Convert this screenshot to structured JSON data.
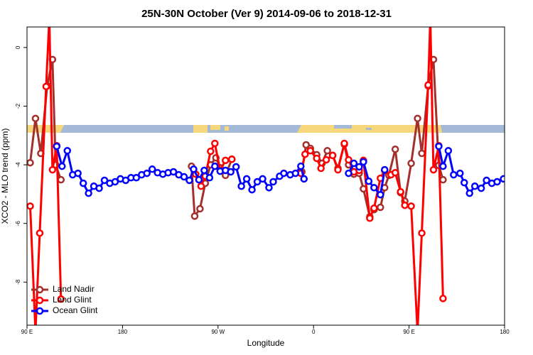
{
  "chart_data": {
    "type": "line",
    "title": "25N-30N October (Ver 9)   2014-09-06 to 2018-12-31",
    "x_label": "Longitude",
    "y_label": "XCO2 - MLO trend (ppm)",
    "xlim": [
      90,
      540
    ],
    "ylim": [
      -9.47,
      0.7
    ],
    "xticks": [
      {
        "value": 90,
        "label": "90 E"
      },
      180,
      {
        "value": 270,
        "label": "90 W"
      },
      {
        "value": 360,
        "label": "0"
      },
      {
        "value": 450,
        "label": "90 E"
      },
      {
        "value": 540,
        "label": "180"
      }
    ],
    "yticks": [
      -8,
      -6,
      -4,
      -2,
      0
    ],
    "grid": false,
    "legend": "bottomleft",
    "series": [
      {
        "name": "Land Nadir",
        "color": "#a3302c",
        "x": [
          93,
          98,
          103,
          109,
          114,
          117,
          122,
          null,
          245,
          248,
          253,
          258,
          263,
          268,
          272,
          277,
          283,
          null,
          349,
          353,
          357,
          363,
          368,
          373,
          378,
          383,
          389,
          393,
          398,
          403,
          407,
          413,
          417,
          423,
          427,
          431,
          437,
          442,
          446,
          452,
          458,
          462,
          468,
          473,
          478,
          482
        ],
        "values": [
          -3.93,
          -2.42,
          -3.61,
          -1.31,
          -0.41,
          -4.0,
          -4.51,
          null,
          -4.05,
          -5.75,
          -5.5,
          -4.63,
          -4.0,
          -3.76,
          -4.1,
          -4.36,
          -3.81,
          null,
          -4.24,
          -3.32,
          -3.44,
          -3.66,
          -3.95,
          -3.52,
          -3.68,
          -4.12,
          -3.3,
          -4.0,
          -4.32,
          -4.29,
          -4.82,
          -5.77,
          -5.53,
          -5.45,
          -4.78,
          -4.36,
          -3.47,
          -4.95,
          -5.24,
          -3.95,
          -2.42,
          -3.61,
          -1.31,
          -0.41,
          -4.02,
          -4.51
        ]
      },
      {
        "name": "Land Glint",
        "color": "#ff0000",
        "x": [
          93,
          98,
          102,
          108,
          111,
          114,
          118,
          122,
          null,
          249,
          254,
          258,
          263,
          267,
          272,
          277,
          283,
          null,
          348,
          352,
          357,
          363,
          367,
          372,
          378,
          383,
          389,
          393,
          398,
          403,
          407,
          413,
          417,
          423,
          427,
          433,
          437,
          442,
          446,
          452,
          458,
          462,
          468,
          470,
          473,
          478,
          482
        ],
        "values": [
          -5.41,
          -9.7,
          -6.33,
          -1.33,
          1.0,
          -4.17,
          -3.35,
          -8.58,
          null,
          -4.32,
          -4.73,
          -4.39,
          -3.54,
          -3.27,
          -4.19,
          -3.85,
          -3.81,
          null,
          -4.29,
          -3.64,
          -3.52,
          -3.78,
          -4.12,
          -3.83,
          -3.68,
          -4.17,
          -3.27,
          -3.83,
          -4.24,
          -4.19,
          -3.85,
          -5.82,
          -5.48,
          -4.46,
          -4.19,
          -4.34,
          -4.27,
          -4.92,
          -5.38,
          -5.41,
          -9.7,
          -6.33,
          -1.28,
          1.0,
          -4.17,
          -3.35,
          -8.56
        ]
      },
      {
        "name": "Ocean Glint",
        "color": "#0000ff",
        "x": [
          118,
          123,
          128,
          133,
          138,
          143,
          148,
          153,
          158,
          163,
          168,
          173,
          178,
          183,
          188,
          193,
          198,
          203,
          208,
          213,
          218,
          223,
          228,
          233,
          238,
          243,
          247,
          252,
          257,
          262,
          267,
          272,
          277,
          282,
          287,
          292,
          297,
          302,
          307,
          312,
          318,
          322,
          328,
          332,
          338,
          343,
          348,
          351,
          null,
          393,
          398,
          403,
          407,
          412,
          417,
          423,
          427,
          null,
          478,
          482,
          487,
          492,
          498,
          502,
          507,
          512,
          518,
          523,
          528,
          533,
          539
        ],
        "values": [
          -3.37,
          -4.05,
          -3.52,
          -4.34,
          -4.29,
          -4.63,
          -4.97,
          -4.73,
          -4.8,
          -4.53,
          -4.63,
          -4.58,
          -4.48,
          -4.53,
          -4.44,
          -4.44,
          -4.34,
          -4.29,
          -4.15,
          -4.27,
          -4.32,
          -4.27,
          -4.24,
          -4.34,
          -4.41,
          -4.53,
          -4.15,
          -4.51,
          -4.19,
          -4.44,
          -4.05,
          -4.22,
          -4.19,
          -4.24,
          -4.07,
          -4.73,
          -4.48,
          -4.85,
          -4.58,
          -4.48,
          -4.78,
          -4.58,
          -4.39,
          -4.29,
          -4.34,
          -4.29,
          -4.05,
          -4.48,
          null,
          -4.29,
          -3.95,
          -4.07,
          -3.9,
          -4.56,
          -4.78,
          -5.02,
          -4.17,
          null,
          -3.37,
          -4.05,
          -3.52,
          -4.34,
          -4.29,
          -4.61,
          -4.97,
          -4.73,
          -4.8,
          -4.53,
          -4.63,
          -4.58,
          -4.48
        ]
      }
    ]
  }
}
